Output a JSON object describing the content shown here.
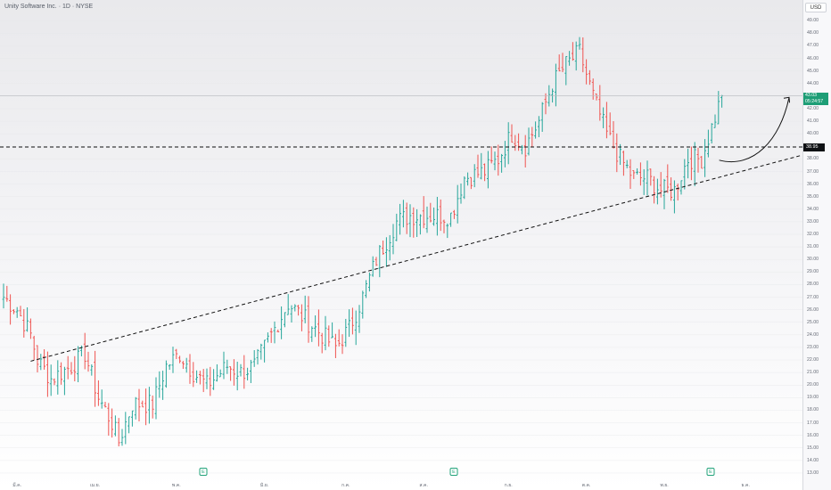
{
  "header": {
    "title": "Unity Software Inc. · 1D · NYSE"
  },
  "axis": {
    "currency": "USD",
    "y_ticks": [
      "49.00",
      "48.00",
      "47.00",
      "46.00",
      "45.00",
      "44.00",
      "43.00",
      "42.00",
      "41.00",
      "40.00",
      "39.00",
      "38.00",
      "37.00",
      "36.00",
      "35.00",
      "34.00",
      "33.00",
      "32.00",
      "31.00",
      "30.00",
      "29.00",
      "28.00",
      "27.00",
      "26.00",
      "25.00",
      "24.00",
      "23.00",
      "22.00",
      "21.00",
      "20.00",
      "19.00",
      "18.00",
      "17.00",
      "16.00",
      "15.00",
      "14.00",
      "13.00"
    ],
    "x_ticks": [
      "มี.ค.",
      "เม.ย.",
      "พ.ค.",
      "มิ.ย.",
      "ก.ค.",
      "ส.ค.",
      "ก.ย.",
      "ต.ค.",
      "พ.ย.",
      "ธ.ค."
    ]
  },
  "price_badge": {
    "price": "43.03",
    "countdown": "05:24:57"
  },
  "level_badge": {
    "label": "38.95"
  },
  "earnings_markers": [
    "E",
    "E",
    "E"
  ],
  "colors": {
    "up": "#26a69a",
    "down": "#ef5350",
    "badge": "#1e9e76",
    "line": "#111111"
  },
  "chart_data": {
    "type": "ohlc",
    "title": "Unity Software Inc. · 1D · NYSE",
    "y_range": [
      12.5,
      49.8
    ],
    "horizontal_level": 38.95,
    "last_price": 43.03,
    "trendline": {
      "from": {
        "bar": 8,
        "value": 21.9
      },
      "to": {
        "bar": 219,
        "value": 37.1
      }
    },
    "anchors": [
      [
        0,
        27
      ],
      [
        4,
        26
      ],
      [
        8,
        24
      ],
      [
        10,
        22
      ],
      [
        14,
        20.5
      ],
      [
        20,
        21.5
      ],
      [
        24,
        22.5
      ],
      [
        28,
        19
      ],
      [
        32,
        17
      ],
      [
        34,
        15.5
      ],
      [
        38,
        18.5
      ],
      [
        44,
        18.5
      ],
      [
        48,
        21.5
      ],
      [
        52,
        22.5
      ],
      [
        56,
        21
      ],
      [
        60,
        20
      ],
      [
        66,
        21.5
      ],
      [
        70,
        21
      ],
      [
        74,
        21.5
      ],
      [
        80,
        24.5
      ],
      [
        84,
        26.5
      ],
      [
        88,
        25.5
      ],
      [
        94,
        24
      ],
      [
        98,
        23
      ],
      [
        102,
        24.5
      ],
      [
        106,
        27
      ],
      [
        110,
        30
      ],
      [
        116,
        33
      ],
      [
        120,
        33.5
      ],
      [
        126,
        33.5
      ],
      [
        132,
        33.5
      ],
      [
        136,
        36.5
      ],
      [
        142,
        37
      ],
      [
        146,
        38
      ],
      [
        150,
        40
      ],
      [
        154,
        39
      ],
      [
        158,
        41
      ],
      [
        162,
        44
      ],
      [
        166,
        45.5
      ],
      [
        170,
        46.5
      ],
      [
        174,
        43
      ],
      [
        178,
        40
      ],
      [
        182,
        38
      ],
      [
        186,
        36.5
      ],
      [
        190,
        36.5
      ],
      [
        194,
        35.5
      ],
      [
        198,
        35.5
      ],
      [
        202,
        38
      ],
      [
        206,
        38
      ],
      [
        212,
        43.03
      ]
    ]
  }
}
